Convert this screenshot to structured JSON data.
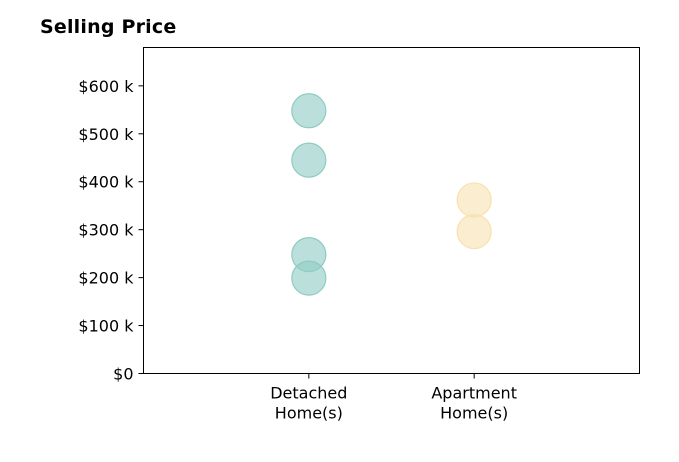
{
  "chart_data": {
    "type": "scatter",
    "title": "Selling Price",
    "xlabel": "",
    "ylabel": "",
    "categories": [
      "Detached\nHome(s)",
      "Apartment\nHome(s)"
    ],
    "xlim": [
      -0.5,
      2.5
    ],
    "ylim": [
      0,
      680000
    ],
    "yticks": [
      0,
      100000,
      200000,
      300000,
      400000,
      500000,
      600000
    ],
    "ytick_labels": [
      "$0",
      "$100 k",
      "$200 k",
      "$300 k",
      "$400 k",
      "$500 k",
      "$600 k"
    ],
    "grid": false,
    "series": [
      {
        "category_index": 0,
        "color": "#8ecbc3",
        "values": [
          548000,
          445000,
          248000,
          199000
        ]
      },
      {
        "category_index": 1,
        "color": "#f9e1b0",
        "values": [
          362000,
          296000
        ]
      }
    ]
  }
}
